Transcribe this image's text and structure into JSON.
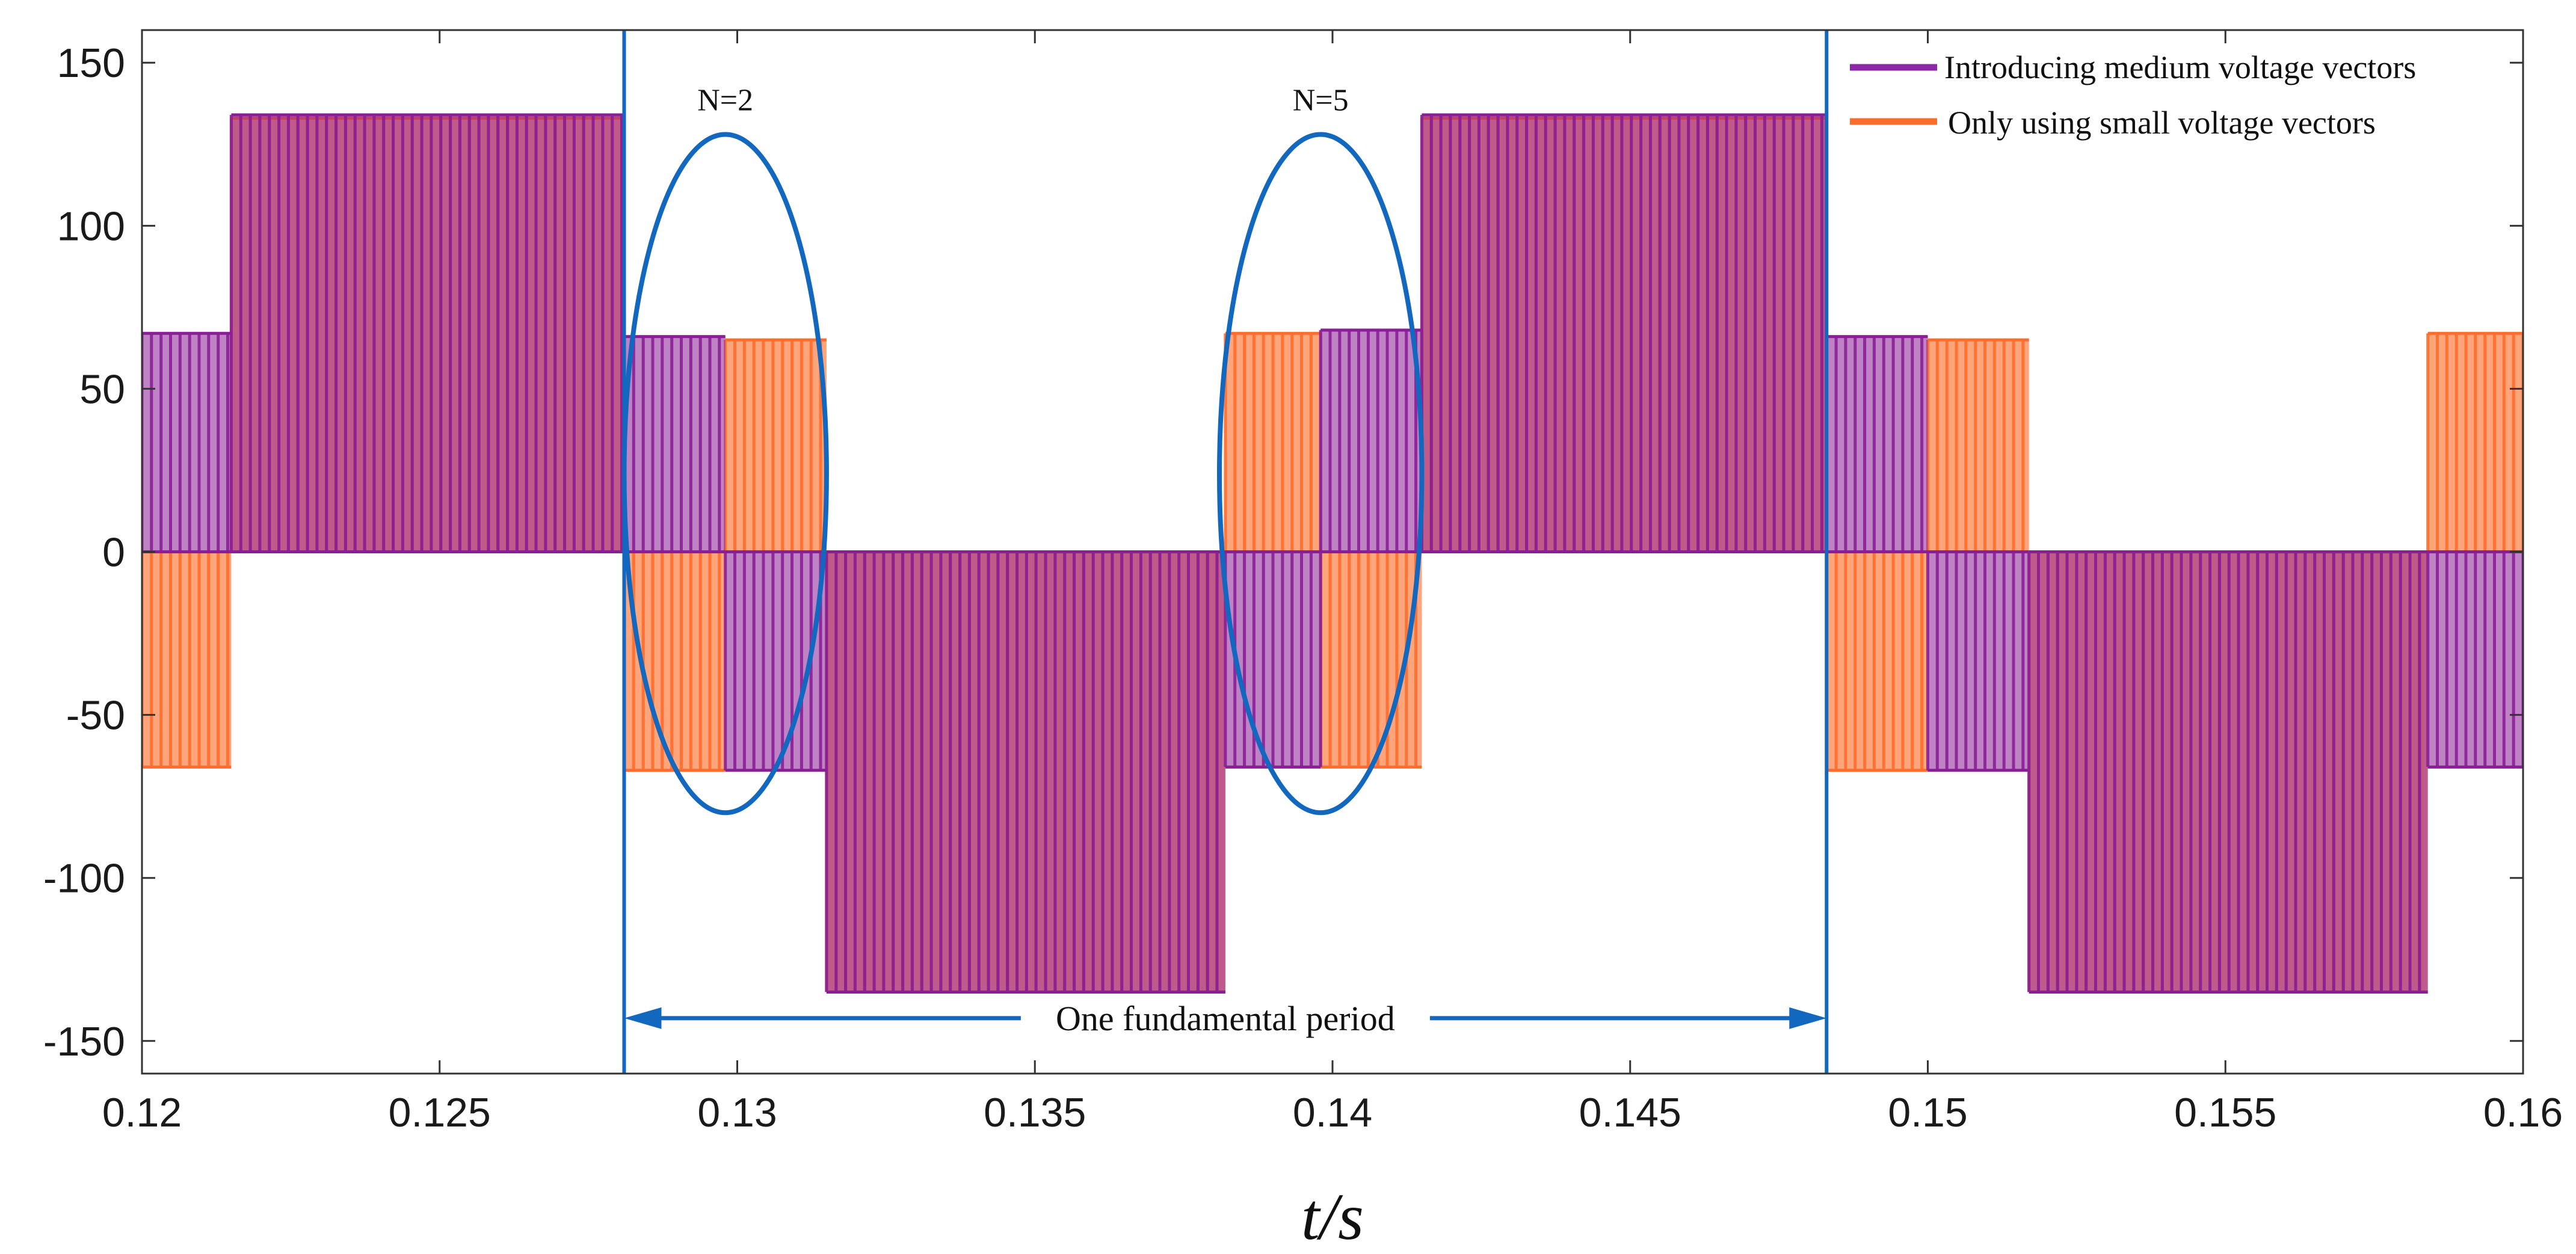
{
  "chart_data": {
    "type": "line",
    "title": "",
    "xlabel": "t/s",
    "ylabel": "",
    "xlim": [
      0.12,
      0.16
    ],
    "ylim": [
      -160,
      160
    ],
    "x_ticks": [
      0.12,
      0.125,
      0.13,
      0.135,
      0.14,
      0.145,
      0.15,
      0.155,
      0.16
    ],
    "x_tick_labels": [
      "0.12",
      "0.125",
      "0.13",
      "0.135",
      "0.14",
      "0.145",
      "0.15",
      "0.155",
      "0.16"
    ],
    "y_ticks": [
      150,
      100,
      50,
      0,
      -50,
      -100,
      -150
    ],
    "y_tick_labels": [
      "150",
      "100",
      "50",
      "0",
      "-50",
      "-100",
      "-150"
    ],
    "grid": false,
    "legend_position": "top-right",
    "switching_period": 0.00016,
    "series": [
      {
        "name": "Only using small voltage vectors",
        "color": "#ff6d2c",
        "segments": [
          {
            "x0": 0.12,
            "x1": 0.1215,
            "lo": -66,
            "hi": 0
          },
          {
            "x0": 0.1215,
            "x1": 0.1281,
            "lo": 0,
            "hi": 133
          },
          {
            "x0": 0.1281,
            "x1": 0.1298,
            "lo": -67,
            "hi": 0
          },
          {
            "x0": 0.1298,
            "x1": 0.1315,
            "lo": 0,
            "hi": 65
          },
          {
            "x0": 0.1315,
            "x1": 0.1382,
            "lo": -135,
            "hi": 0
          },
          {
            "x0": 0.1382,
            "x1": 0.1398,
            "lo": 0,
            "hi": 67
          },
          {
            "x0": 0.1398,
            "x1": 0.1415,
            "lo": -66,
            "hi": 0
          },
          {
            "x0": 0.1415,
            "x1": 0.1483,
            "lo": 0,
            "hi": 133
          },
          {
            "x0": 0.1483,
            "x1": 0.15,
            "lo": -67,
            "hi": 0
          },
          {
            "x0": 0.15,
            "x1": 0.1517,
            "lo": 0,
            "hi": 65
          },
          {
            "x0": 0.1517,
            "x1": 0.1584,
            "lo": -135,
            "hi": 0
          },
          {
            "x0": 0.1584,
            "x1": 0.16,
            "lo": 0,
            "hi": 67
          }
        ]
      },
      {
        "name": "Introducing medium voltage vectors",
        "color": "#8a1e96",
        "segments": [
          {
            "x0": 0.12,
            "x1": 0.1215,
            "lo": 0,
            "hi": 67
          },
          {
            "x0": 0.1215,
            "x1": 0.1281,
            "lo": 0,
            "hi": 134
          },
          {
            "x0": 0.1281,
            "x1": 0.1298,
            "lo": 0,
            "hi": 66
          },
          {
            "x0": 0.1298,
            "x1": 0.1315,
            "lo": -67,
            "hi": 0
          },
          {
            "x0": 0.1315,
            "x1": 0.1382,
            "lo": -135,
            "hi": 0
          },
          {
            "x0": 0.1382,
            "x1": 0.1398,
            "lo": -66,
            "hi": 0
          },
          {
            "x0": 0.1398,
            "x1": 0.1415,
            "lo": 0,
            "hi": 68
          },
          {
            "x0": 0.1415,
            "x1": 0.1483,
            "lo": 0,
            "hi": 134
          },
          {
            "x0": 0.1483,
            "x1": 0.15,
            "lo": 0,
            "hi": 66
          },
          {
            "x0": 0.15,
            "x1": 0.1517,
            "lo": -67,
            "hi": 0
          },
          {
            "x0": 0.1517,
            "x1": 0.1584,
            "lo": -135,
            "hi": 0
          },
          {
            "x0": 0.1584,
            "x1": 0.16,
            "lo": -66,
            "hi": 0
          }
        ]
      }
    ],
    "annotations": {
      "ellipses": [
        {
          "label": "N=2",
          "cx": 0.1298,
          "cy": 24,
          "rx": 0.0017,
          "ry": 104,
          "color": "#1268bf"
        },
        {
          "label": "N=5",
          "cx": 0.1398,
          "cy": 24,
          "rx": 0.0017,
          "ry": 104,
          "color": "#1268bf"
        }
      ],
      "vlines": [
        0.1281,
        0.1483
      ],
      "vline_color": "#1268bf",
      "period_arrow": {
        "x0": 0.1281,
        "x1": 0.1483,
        "y": -143,
        "label": "One fundamental period"
      }
    }
  },
  "legend": {
    "items": [
      {
        "label": "Introducing medium voltage vectors",
        "color": "#8a28a8"
      },
      {
        "label": "Only using small voltage vectors",
        "color": "#ff6d2c"
      }
    ]
  }
}
